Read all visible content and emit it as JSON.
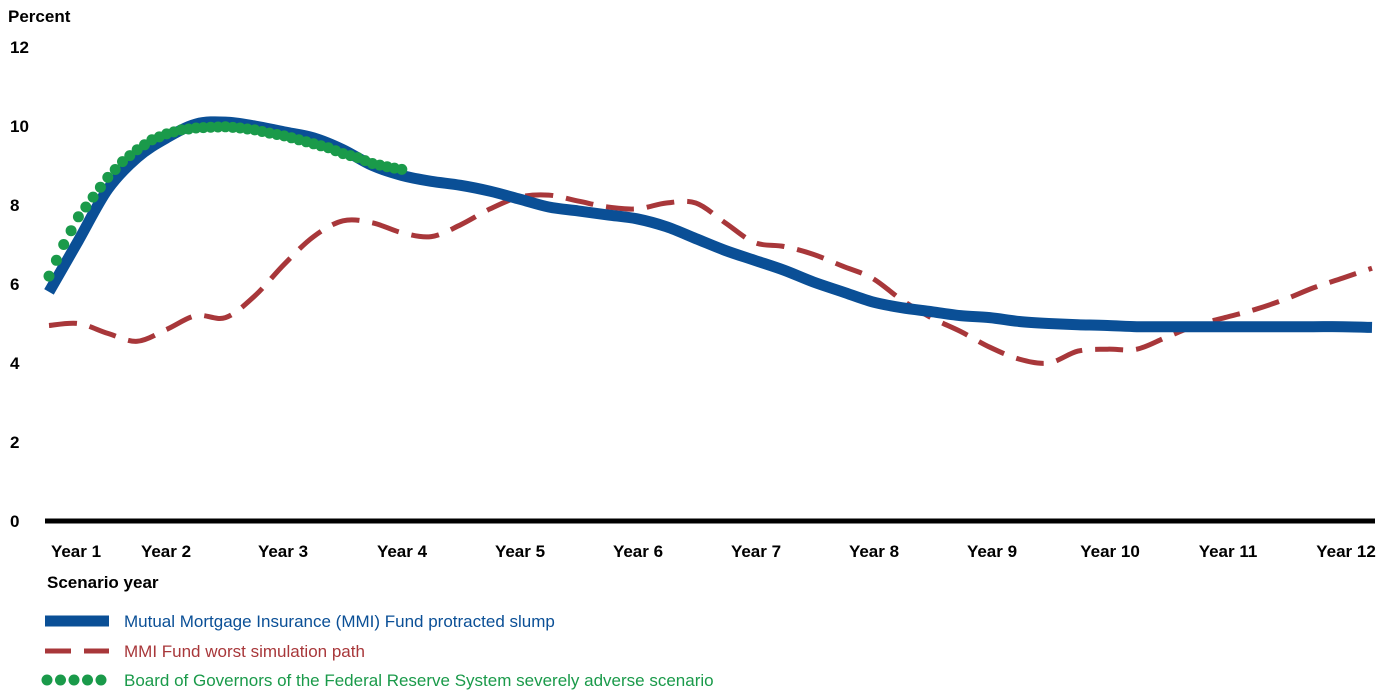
{
  "chart_data": {
    "type": "line",
    "ylabel": "Percent",
    "xlabel": "Scenario year",
    "ylim": [
      0,
      12
    ],
    "yticks": [
      "0",
      "2",
      "4",
      "6",
      "8",
      "10",
      "12"
    ],
    "x_categories": [
      "Year 1",
      "Year 2",
      "Year 3",
      "Year 4",
      "Year 5",
      "Year 6",
      "Year 7",
      "Year 8",
      "Year 9",
      "Year 10",
      "Year 11",
      "Year 12"
    ],
    "grid": false,
    "legend_position": "bottom",
    "series": [
      {
        "name": "Mutual Mortgage Insurance (MMI) Fund protracted slump",
        "color": "#0a4f96",
        "style": "solid",
        "x": [
          1.0,
          1.25,
          1.5,
          1.75,
          2.0,
          2.25,
          2.5,
          2.75,
          3.0,
          3.25,
          3.5,
          3.75,
          4.0,
          4.25,
          4.5,
          4.75,
          5.0,
          5.25,
          5.5,
          5.75,
          6.0,
          6.25,
          6.5,
          6.75,
          7.0,
          7.25,
          7.5,
          7.75,
          8.0,
          8.25,
          8.5,
          8.75,
          9.0,
          9.25,
          9.5,
          9.75,
          10.0,
          10.25,
          10.5,
          10.75,
          11.0,
          11.25,
          11.5,
          11.75,
          12.0,
          12.25
        ],
        "values": [
          5.8,
          7.1,
          8.4,
          9.2,
          9.7,
          10.05,
          10.1,
          10.0,
          9.85,
          9.7,
          9.4,
          9.0,
          8.75,
          8.6,
          8.5,
          8.35,
          8.15,
          7.95,
          7.85,
          7.75,
          7.65,
          7.45,
          7.15,
          6.85,
          6.6,
          6.35,
          6.05,
          5.8,
          5.55,
          5.4,
          5.3,
          5.2,
          5.15,
          5.05,
          5.0,
          4.97,
          4.95,
          4.92,
          4.92,
          4.92,
          4.92,
          4.92,
          4.92,
          4.92,
          4.92,
          4.9
        ]
      },
      {
        "name": "MMI Fund worst simulation path",
        "color": "#a8373a",
        "style": "dashed",
        "x": [
          1.0,
          1.25,
          1.5,
          1.75,
          2.0,
          2.25,
          2.5,
          2.75,
          3.0,
          3.25,
          3.5,
          3.75,
          4.0,
          4.25,
          4.5,
          4.75,
          5.0,
          5.25,
          5.5,
          5.75,
          6.0,
          6.25,
          6.5,
          6.75,
          7.0,
          7.25,
          7.5,
          7.75,
          8.0,
          8.25,
          8.5,
          8.75,
          9.0,
          9.25,
          9.5,
          9.75,
          10.0,
          10.25,
          10.5,
          10.75,
          11.0,
          11.25,
          11.5,
          11.75,
          12.0,
          12.25
        ],
        "values": [
          4.95,
          5.0,
          4.75,
          4.55,
          4.85,
          5.2,
          5.15,
          5.7,
          6.5,
          7.2,
          7.6,
          7.55,
          7.3,
          7.2,
          7.5,
          7.9,
          8.2,
          8.25,
          8.1,
          7.95,
          7.9,
          8.05,
          8.05,
          7.55,
          7.05,
          6.95,
          6.75,
          6.45,
          6.15,
          5.6,
          5.15,
          4.8,
          4.4,
          4.1,
          4.0,
          4.3,
          4.35,
          4.35,
          4.65,
          4.95,
          5.15,
          5.35,
          5.6,
          5.9,
          6.15,
          6.4
        ]
      },
      {
        "name": "Board of Governors of the Federal Reserve System severely adverse scenario",
        "color": "#1a9a4a",
        "style": "dotted",
        "x": [
          1.0,
          1.125,
          1.25,
          1.375,
          1.5,
          1.625,
          1.75,
          1.875,
          2.0,
          2.125,
          2.25,
          2.375,
          2.5,
          2.625,
          2.75,
          2.875,
          3.0,
          3.125,
          3.25,
          3.375,
          3.5,
          3.625,
          3.75,
          3.875,
          4.0
        ],
        "values": [
          6.2,
          7.0,
          7.7,
          8.2,
          8.7,
          9.1,
          9.4,
          9.65,
          9.8,
          9.9,
          9.95,
          9.97,
          9.98,
          9.95,
          9.9,
          9.82,
          9.75,
          9.65,
          9.55,
          9.45,
          9.3,
          9.2,
          9.05,
          8.97,
          8.9
        ]
      }
    ]
  }
}
